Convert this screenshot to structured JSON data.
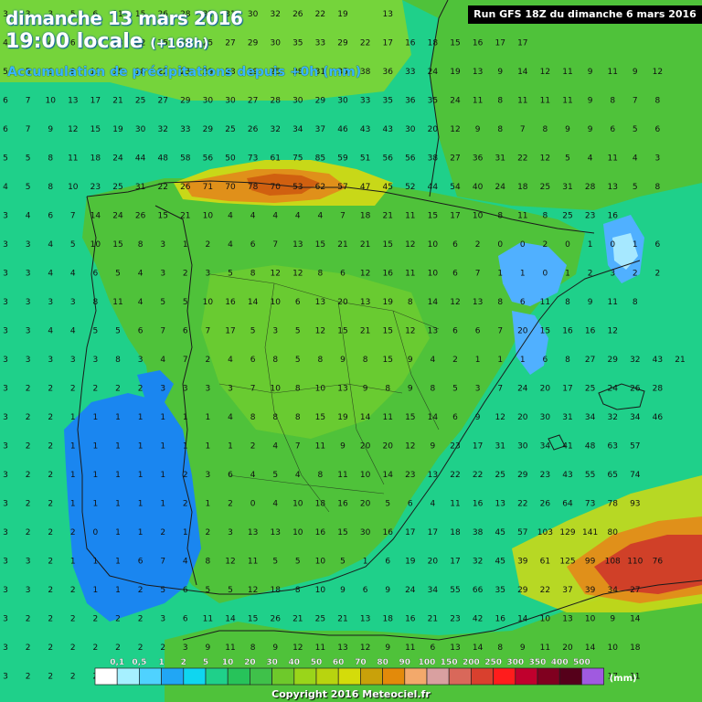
{
  "header": {
    "date_line": "dimanche 13 mars 2016",
    "time_line": "19:00 locale",
    "offset": "(+168h)",
    "subtitle": "Accumulation de précipitations depuis +0h (mm)",
    "run_info": "Run GFS 18Z du dimanche 6 mars 2016"
  },
  "legend": {
    "unit": "(mm)",
    "thresholds": [
      "0,1",
      "0,5",
      "1",
      "2",
      "5",
      "10",
      "20",
      "30",
      "40",
      "50",
      "60",
      "70",
      "80",
      "90",
      "100",
      "150",
      "200",
      "250",
      "300",
      "350",
      "400",
      "500"
    ],
    "colors": [
      "#ffffff",
      "#a6f0ff",
      "#4fd2ff",
      "#21a6f5",
      "#0fd6f0",
      "#1fd08a",
      "#27c35a",
      "#3fc14a",
      "#6ec92b",
      "#9ad51a",
      "#b8d40f",
      "#d4dc0a",
      "#c9a10a",
      "#e38a0a",
      "#f3a96b",
      "#d9a0a0",
      "#d9685a",
      "#d9402e",
      "#ff1c1c",
      "#c0002d",
      "#80001f",
      "#55001a",
      "#a05ae0"
    ]
  },
  "copyright": "Copyright 2016 Meteociel.fr",
  "map": {
    "colors": {
      "sea_green": "#1fd08a",
      "land_green": "#4fc23a",
      "land_light": "#7fd42a",
      "blue_heavy": "#1a86f0",
      "blue_light": "#50b0ff",
      "blue_pale": "#a6e8ff",
      "orange": "#e0901a",
      "orange_dark": "#d06010",
      "yellow": "#c8d818",
      "red": "#d04028",
      "border": "#1a1a1a"
    },
    "value_rows": [
      [
        "3",
        "3",
        "3",
        "5",
        "6",
        "11",
        "15",
        "26",
        "28",
        "32",
        "31",
        "30",
        "32",
        "26",
        "22",
        "19",
        "",
        "13"
      ],
      [
        "4",
        "4",
        "4",
        "6",
        "5",
        "13",
        "22",
        "25",
        "24",
        "25",
        "27",
        "29",
        "30",
        "35",
        "33",
        "29",
        "22",
        "17",
        "16",
        "18",
        "15",
        "16",
        "17",
        "17"
      ],
      [
        "5",
        "5",
        "6",
        "8",
        "11",
        "15",
        "18",
        "22",
        "23",
        "29",
        "23",
        "29",
        "25",
        "38",
        "31",
        "35",
        "38",
        "36",
        "33",
        "24",
        "19",
        "13",
        "9",
        "14",
        "12",
        "11",
        "9",
        "11",
        "9",
        "12"
      ],
      [
        "6",
        "7",
        "10",
        "13",
        "17",
        "21",
        "25",
        "27",
        "29",
        "30",
        "30",
        "27",
        "28",
        "30",
        "29",
        "30",
        "33",
        "35",
        "36",
        "35",
        "24",
        "11",
        "8",
        "11",
        "11",
        "11",
        "9",
        "8",
        "7",
        "8"
      ],
      [
        "6",
        "7",
        "9",
        "12",
        "15",
        "19",
        "30",
        "32",
        "33",
        "29",
        "25",
        "26",
        "32",
        "34",
        "37",
        "46",
        "43",
        "43",
        "30",
        "20",
        "12",
        "9",
        "8",
        "7",
        "8",
        "9",
        "9",
        "6",
        "5",
        "6"
      ],
      [
        "5",
        "5",
        "8",
        "11",
        "18",
        "24",
        "44",
        "48",
        "58",
        "56",
        "50",
        "73",
        "61",
        "75",
        "85",
        "59",
        "51",
        "56",
        "56",
        "38",
        "27",
        "36",
        "31",
        "22",
        "12",
        "5",
        "4",
        "11",
        "4",
        "3"
      ],
      [
        "4",
        "5",
        "8",
        "10",
        "23",
        "25",
        "31",
        "22",
        "26",
        "71",
        "70",
        "78",
        "70",
        "53",
        "62",
        "57",
        "47",
        "45",
        "52",
        "44",
        "54",
        "40",
        "24",
        "18",
        "25",
        "31",
        "28",
        "13",
        "5",
        "8"
      ],
      [
        "3",
        "4",
        "6",
        "7",
        "14",
        "24",
        "26",
        "15",
        "21",
        "10",
        "4",
        "4",
        "4",
        "4",
        "4",
        "7",
        "18",
        "21",
        "11",
        "15",
        "17",
        "10",
        "8",
        "11",
        "8",
        "25",
        "23",
        "16"
      ],
      [
        "3",
        "3",
        "4",
        "5",
        "10",
        "15",
        "8",
        "3",
        "1",
        "2",
        "4",
        "6",
        "7",
        "13",
        "15",
        "21",
        "21",
        "15",
        "12",
        "10",
        "6",
        "2",
        "0",
        "0",
        "2",
        "0",
        "1",
        "0",
        "1",
        "6"
      ],
      [
        "3",
        "3",
        "4",
        "4",
        "6",
        "5",
        "4",
        "3",
        "2",
        "3",
        "5",
        "8",
        "12",
        "12",
        "8",
        "6",
        "12",
        "16",
        "11",
        "10",
        "6",
        "7",
        "1",
        "1",
        "0",
        "1",
        "2",
        "3",
        "2",
        "2"
      ],
      [
        "3",
        "3",
        "3",
        "3",
        "8",
        "11",
        "4",
        "5",
        "5",
        "10",
        "16",
        "14",
        "10",
        "6",
        "13",
        "20",
        "13",
        "19",
        "8",
        "14",
        "12",
        "13",
        "8",
        "6",
        "11",
        "8",
        "9",
        "11",
        "8"
      ],
      [
        "3",
        "3",
        "4",
        "4",
        "5",
        "5",
        "6",
        "7",
        "6",
        "7",
        "17",
        "5",
        "3",
        "5",
        "12",
        "15",
        "21",
        "15",
        "12",
        "13",
        "6",
        "6",
        "7",
        "20",
        "15",
        "16",
        "16",
        "12"
      ],
      [
        "3",
        "3",
        "3",
        "3",
        "3",
        "8",
        "3",
        "4",
        "7",
        "2",
        "4",
        "6",
        "8",
        "5",
        "8",
        "9",
        "8",
        "15",
        "9",
        "4",
        "2",
        "1",
        "1",
        "1",
        "6",
        "8",
        "27",
        "29",
        "32",
        "43",
        "21"
      ],
      [
        "3",
        "2",
        "2",
        "2",
        "2",
        "2",
        "2",
        "3",
        "3",
        "3",
        "3",
        "7",
        "10",
        "8",
        "10",
        "13",
        "9",
        "8",
        "9",
        "8",
        "5",
        "3",
        "7",
        "24",
        "20",
        "17",
        "25",
        "24",
        "26",
        "28"
      ],
      [
        "3",
        "2",
        "2",
        "1",
        "1",
        "1",
        "1",
        "1",
        "1",
        "1",
        "4",
        "8",
        "8",
        "8",
        "15",
        "19",
        "14",
        "11",
        "15",
        "14",
        "6",
        "9",
        "12",
        "20",
        "30",
        "31",
        "34",
        "32",
        "34",
        "46"
      ],
      [
        "3",
        "2",
        "2",
        "1",
        "1",
        "1",
        "1",
        "1",
        "1",
        "1",
        "1",
        "2",
        "4",
        "7",
        "11",
        "9",
        "20",
        "20",
        "12",
        "9",
        "23",
        "17",
        "31",
        "30",
        "34",
        "41",
        "48",
        "63",
        "57"
      ],
      [
        "3",
        "2",
        "2",
        "1",
        "1",
        "1",
        "1",
        "1",
        "2",
        "3",
        "6",
        "4",
        "5",
        "4",
        "8",
        "11",
        "10",
        "14",
        "23",
        "13",
        "22",
        "22",
        "25",
        "29",
        "23",
        "43",
        "55",
        "65",
        "74"
      ],
      [
        "3",
        "2",
        "2",
        "1",
        "1",
        "1",
        "1",
        "1",
        "2",
        "1",
        "2",
        "0",
        "4",
        "10",
        "18",
        "16",
        "20",
        "5",
        "6",
        "4",
        "11",
        "16",
        "13",
        "22",
        "26",
        "64",
        "73",
        "78",
        "93"
      ],
      [
        "3",
        "2",
        "2",
        "2",
        "0",
        "1",
        "1",
        "2",
        "1",
        "2",
        "3",
        "13",
        "13",
        "10",
        "16",
        "15",
        "30",
        "16",
        "17",
        "17",
        "18",
        "38",
        "45",
        "57",
        "103",
        "129",
        "141",
        "80"
      ],
      [
        "3",
        "3",
        "2",
        "1",
        "1",
        "1",
        "6",
        "7",
        "4",
        "8",
        "12",
        "11",
        "5",
        "5",
        "10",
        "5",
        "1",
        "6",
        "19",
        "20",
        "17",
        "32",
        "45",
        "39",
        "61",
        "125",
        "99",
        "108",
        "110",
        "76"
      ],
      [
        "3",
        "3",
        "2",
        "2",
        "1",
        "1",
        "2",
        "5",
        "6",
        "5",
        "5",
        "12",
        "18",
        "8",
        "10",
        "9",
        "6",
        "9",
        "24",
        "34",
        "55",
        "66",
        "35",
        "29",
        "22",
        "37",
        "39",
        "34",
        "27"
      ],
      [
        "3",
        "2",
        "2",
        "2",
        "2",
        "2",
        "2",
        "3",
        "6",
        "11",
        "14",
        "15",
        "26",
        "21",
        "25",
        "21",
        "13",
        "18",
        "16",
        "21",
        "23",
        "42",
        "16",
        "14",
        "10",
        "13",
        "10",
        "9",
        "14"
      ],
      [
        "3",
        "2",
        "2",
        "2",
        "2",
        "2",
        "2",
        "2",
        "3",
        "9",
        "11",
        "8",
        "9",
        "12",
        "11",
        "13",
        "12",
        "9",
        "11",
        "6",
        "13",
        "14",
        "8",
        "9",
        "11",
        "20",
        "14",
        "10",
        "18"
      ],
      [
        "3",
        "2",
        "2",
        "2",
        "2",
        "2",
        "2",
        "3",
        "5",
        "6",
        "10",
        "15",
        "9",
        "7",
        "9",
        "8",
        "12",
        "8",
        "7",
        "9",
        "11",
        "8",
        "6",
        "13",
        "14",
        "15",
        "14",
        "17",
        "11"
      ]
    ]
  }
}
